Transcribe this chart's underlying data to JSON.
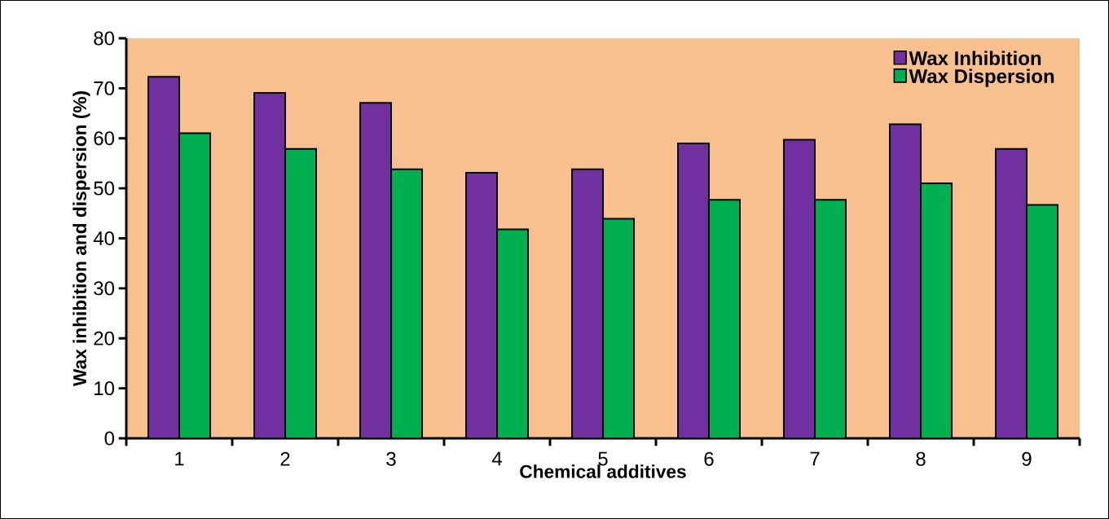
{
  "chart_data": {
    "type": "bar",
    "xlabel": "Chemical additives",
    "ylabel": "Wax inhibition and dispersion (%)",
    "categories": [
      "1",
      "2",
      "3",
      "4",
      "5",
      "6",
      "7",
      "8",
      "9"
    ],
    "series": [
      {
        "name": "Wax Inhibition",
        "color": "#7030a0",
        "values": [
          72.3,
          69.1,
          67.1,
          53.1,
          53.8,
          59.0,
          59.7,
          62.8,
          57.9
        ]
      },
      {
        "name": "Wax Dispersion",
        "color": "#00b050",
        "values": [
          61.0,
          57.9,
          53.8,
          41.8,
          43.9,
          47.7,
          47.7,
          51.0,
          46.7
        ]
      }
    ],
    "ylim": [
      0,
      80
    ],
    "yticks": [
      0,
      10,
      20,
      30,
      40,
      50,
      60,
      70,
      80
    ],
    "grid": false,
    "legend": "top right"
  }
}
